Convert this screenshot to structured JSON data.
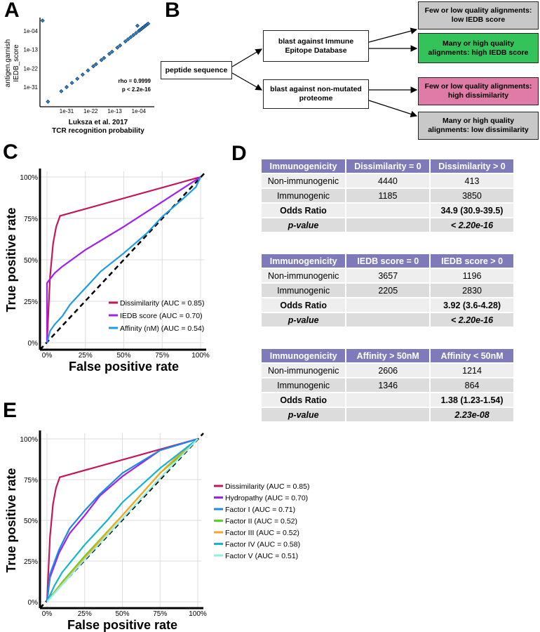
{
  "panels": {
    "a": "A",
    "b": "B",
    "c": "C",
    "d": "D",
    "e": "E"
  },
  "panel_b": {
    "input": "peptide sequence",
    "blast_iedb": "blast against Immune Epitope Database",
    "blast_proteome": "blast against non-mutated proteome",
    "out1": "Few or low quality alignments: low IEDB score",
    "out2": "Many or high quality alignments: high IEDB score",
    "out3": "Few or low quality alignments: high dissimilarity",
    "out4": "Many or high quality alignments: low dissimilarity",
    "colors": {
      "gray": "#c8c8c8",
      "green": "#33c35a",
      "pink": "#e07aa6"
    }
  },
  "tables": [
    {
      "header": [
        "Immunogenicity",
        "Dissimilarity = 0",
        "Dissimilarity > 0"
      ],
      "rows": [
        [
          "Non-immunogenic",
          "4440",
          "413"
        ],
        [
          "Immunogenic",
          "1185",
          "3850"
        ],
        [
          "Odds Ratio",
          "",
          "34.9 (30.9-39.5)"
        ],
        [
          "p-value",
          "",
          "< 2.20e-16"
        ]
      ]
    },
    {
      "header": [
        "Immunogenicity",
        "IEDB score = 0",
        "IEDB score > 0"
      ],
      "rows": [
        [
          "Non-immunogenic",
          "3657",
          "1196"
        ],
        [
          "Immunogenic",
          "2205",
          "2830"
        ],
        [
          "Odds Ratio",
          "",
          "3.92 (3.6-4.28)"
        ],
        [
          "p-value",
          "",
          "< 2.20e-16"
        ]
      ]
    },
    {
      "header": [
        "Immunogenicity",
        "Affinity > 50nM",
        "Affinity < 50nM"
      ],
      "rows": [
        [
          "Non-immunogenic",
          "2606",
          "1214"
        ],
        [
          "Immunogenic",
          "1346",
          "864"
        ],
        [
          "Odds Ratio",
          "",
          "1.38 (1.23-1.54)"
        ],
        [
          "p-value",
          "",
          "2.23e-08"
        ]
      ]
    }
  ],
  "chart_data": [
    {
      "id": "a",
      "type": "scatter",
      "xlabel": "Luksza et al. 2017\nTCR recognition probability",
      "ylabel": "antigen.garnish\nIEDB_score",
      "xlabel_lines": [
        "Luksza et al. 2017",
        "TCR recognition probability"
      ],
      "ylabel_lines": [
        "antigen.garnish",
        "IEDB_score"
      ],
      "scale": "log10",
      "xticks": [
        "1e-31",
        "1e-22",
        "1e-13",
        "1e-04"
      ],
      "tick_exponents": [
        -31,
        -22,
        -13,
        -4
      ],
      "annotations": [
        "rho = 0.9999",
        "p < 2.2e-16"
      ],
      "points_log10": [
        [
          -40,
          1
        ],
        [
          -38,
          -38
        ],
        [
          -33,
          -33
        ],
        [
          -31,
          -31
        ],
        [
          -29,
          -29
        ],
        [
          -27,
          -27
        ],
        [
          -25,
          -25
        ],
        [
          -23,
          -23
        ],
        [
          -21,
          -21
        ],
        [
          -20,
          -20
        ],
        [
          -18,
          -18
        ],
        [
          -17,
          -17
        ],
        [
          -15,
          -15
        ],
        [
          -14,
          -14
        ],
        [
          -12,
          -12
        ],
        [
          -11,
          -11
        ],
        [
          -9,
          -9
        ],
        [
          -8,
          -8
        ],
        [
          -7,
          -7
        ],
        [
          -6,
          -6
        ],
        [
          -5,
          -5
        ],
        [
          -4,
          -4
        ],
        [
          -3.5,
          -3.5
        ],
        [
          -3,
          -3
        ],
        [
          -2.5,
          -2.5
        ],
        [
          -2,
          -2
        ],
        [
          -1.5,
          -1.5
        ],
        [
          -1,
          -1
        ],
        [
          -0.5,
          -0.5
        ],
        [
          -4.5,
          -1.5
        ]
      ]
    },
    {
      "id": "c",
      "type": "line",
      "xlabel": "False positive rate",
      "ylabel": "True positive rate",
      "xlim": [
        0,
        1
      ],
      "ylim": [
        0,
        1
      ],
      "ticks": [
        "0%",
        "25%",
        "50%",
        "75%",
        "100%"
      ],
      "grid": true,
      "legend": "bottom-right",
      "series": [
        {
          "name": "Dissimilarity (AUC = 0.85)",
          "color": "#c2185b",
          "points": [
            [
              0,
              0
            ],
            [
              0.01,
              0.2
            ],
            [
              0.02,
              0.4
            ],
            [
              0.04,
              0.6
            ],
            [
              0.06,
              0.7
            ],
            [
              0.085,
              0.765
            ],
            [
              1,
              1
            ]
          ]
        },
        {
          "name": "IEDB score (AUC = 0.70)",
          "color": "#a020f0",
          "points": [
            [
              0,
              0
            ],
            [
              0,
              0.36
            ],
            [
              0.05,
              0.42
            ],
            [
              0.1,
              0.46
            ],
            [
              0.25,
              0.56
            ],
            [
              0.5,
              0.7
            ],
            [
              0.75,
              0.85
            ],
            [
              1,
              1
            ]
          ]
        },
        {
          "name": "Affinity (nM) (AUC = 0.54)",
          "color": "#1e9be6",
          "points": [
            [
              0,
              0
            ],
            [
              0.02,
              0.07
            ],
            [
              0.05,
              0.11
            ],
            [
              0.1,
              0.16
            ],
            [
              0.15,
              0.23
            ],
            [
              0.25,
              0.33
            ],
            [
              0.35,
              0.43
            ],
            [
              0.5,
              0.54
            ],
            [
              0.65,
              0.66
            ],
            [
              0.75,
              0.76
            ],
            [
              0.9,
              0.88
            ],
            [
              0.97,
              0.94
            ],
            [
              1,
              1
            ]
          ]
        }
      ]
    },
    {
      "id": "e",
      "type": "line",
      "xlabel": "False positive rate",
      "ylabel": "True positive rate",
      "xlim": [
        0,
        1
      ],
      "ylim": [
        0,
        1
      ],
      "ticks": [
        "0%",
        "25%",
        "50%",
        "75%",
        "100%"
      ],
      "grid": true,
      "legend": "right",
      "series": [
        {
          "name": "Dissimilarity (AUC = 0.85)",
          "color": "#c2185b",
          "points": [
            [
              0,
              0
            ],
            [
              0.01,
              0.2
            ],
            [
              0.02,
              0.4
            ],
            [
              0.04,
              0.6
            ],
            [
              0.06,
              0.7
            ],
            [
              0.085,
              0.765
            ],
            [
              1,
              1
            ]
          ]
        },
        {
          "name": "Hydropathy (AUC = 0.70)",
          "color": "#a020f0",
          "points": [
            [
              0,
              0
            ],
            [
              0.02,
              0.15
            ],
            [
              0.08,
              0.3
            ],
            [
              0.15,
              0.42
            ],
            [
              0.25,
              0.53
            ],
            [
              0.35,
              0.65
            ],
            [
              0.5,
              0.77
            ],
            [
              0.75,
              0.93
            ],
            [
              1,
              1
            ]
          ]
        },
        {
          "name": "Factor I (AUC = 0.71)",
          "color": "#1e88e5",
          "points": [
            [
              0,
              0
            ],
            [
              0.02,
              0.17
            ],
            [
              0.08,
              0.32
            ],
            [
              0.15,
              0.45
            ],
            [
              0.25,
              0.56
            ],
            [
              0.35,
              0.66
            ],
            [
              0.5,
              0.79
            ],
            [
              0.75,
              0.93
            ],
            [
              1,
              1
            ]
          ]
        },
        {
          "name": "Factor II (AUC = 0.52)",
          "color": "#5ad31e",
          "points": [
            [
              0,
              0
            ],
            [
              0.1,
              0.12
            ],
            [
              0.25,
              0.28
            ],
            [
              0.5,
              0.53
            ],
            [
              0.75,
              0.79
            ],
            [
              0.85,
              0.87
            ],
            [
              1,
              1
            ]
          ]
        },
        {
          "name": "Factor III (AUC = 0.52)",
          "color": "#f5a623",
          "points": [
            [
              0,
              0
            ],
            [
              0.1,
              0.11
            ],
            [
              0.25,
              0.27
            ],
            [
              0.5,
              0.53
            ],
            [
              0.75,
              0.79
            ],
            [
              0.85,
              0.88
            ],
            [
              1,
              1
            ]
          ]
        },
        {
          "name": "Factor IV (AUC = 0.58)",
          "color": "#12b5d0",
          "points": [
            [
              0,
              0
            ],
            [
              0.05,
              0.1
            ],
            [
              0.1,
              0.18
            ],
            [
              0.25,
              0.35
            ],
            [
              0.4,
              0.5
            ],
            [
              0.5,
              0.61
            ],
            [
              0.75,
              0.82
            ],
            [
              1,
              1
            ]
          ]
        },
        {
          "name": "Factor V (AUC = 0.51)",
          "color": "#8ff0e0",
          "points": [
            [
              0,
              0
            ],
            [
              0.25,
              0.26
            ],
            [
              0.5,
              0.51
            ],
            [
              0.75,
              0.76
            ],
            [
              1,
              1
            ]
          ]
        }
      ]
    }
  ]
}
